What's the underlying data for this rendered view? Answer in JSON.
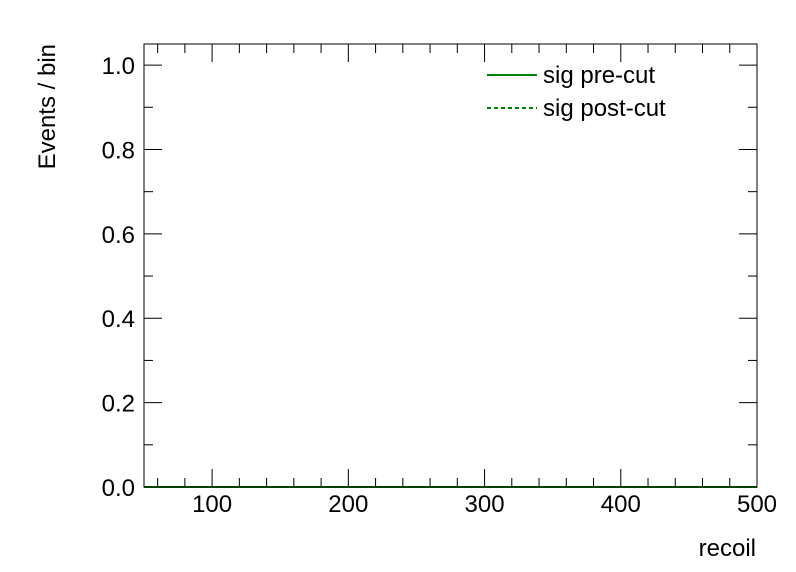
{
  "chart_data": {
    "type": "line",
    "xlabel": "recoil",
    "ylabel": "Events / bin",
    "xlim": [
      50,
      500
    ],
    "ylim": [
      0,
      1.05
    ],
    "x_ticks": [
      100,
      200,
      300,
      400,
      500
    ],
    "x_tick_labels": [
      "100",
      "200",
      "300",
      "400",
      "500"
    ],
    "y_ticks": [
      0,
      0.2,
      0.4,
      0.6,
      0.8,
      1.0
    ],
    "y_tick_labels": [
      "0.0",
      "0.2",
      "0.4",
      "0.6",
      "0.8",
      "1.0"
    ],
    "x_minor_step": 20,
    "y_minor_step": 0.1,
    "legend_position": "top-right",
    "series": [
      {
        "name": "sig pre-cut",
        "color": "#008000",
        "style": "solid",
        "x": [
          50,
          500
        ],
        "y": [
          0,
          0
        ]
      },
      {
        "name": "sig post-cut",
        "color": "#008000",
        "style": "dashed",
        "x": [
          50,
          500
        ],
        "y": [
          0,
          0
        ]
      }
    ]
  }
}
